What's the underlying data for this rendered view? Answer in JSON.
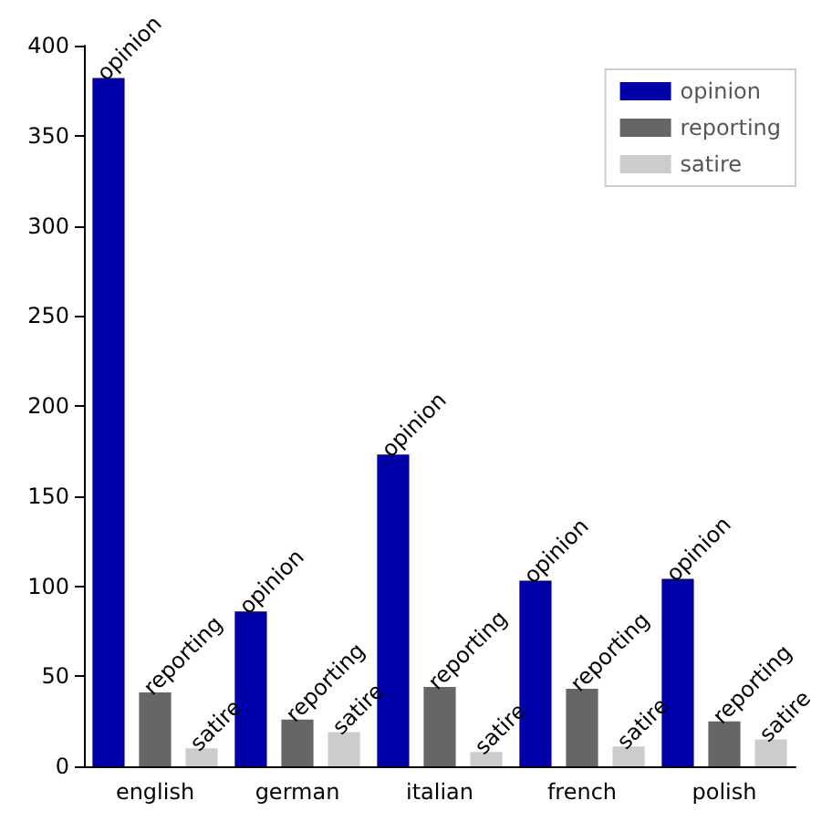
{
  "chart_data": {
    "type": "bar",
    "categories": [
      "english",
      "german",
      "italian",
      "french",
      "polish"
    ],
    "series": [
      {
        "name": "opinion",
        "color": "#0000aa",
        "values": [
          382,
          86,
          173,
          103,
          104
        ],
        "value_labels": [
          "opinion",
          "opinion",
          "opinion",
          "opinion",
          "opinion"
        ]
      },
      {
        "name": "reporting",
        "color": "#666666",
        "values": [
          41,
          26,
          44,
          43,
          25
        ],
        "value_labels": [
          "reporting",
          "reporting",
          "reporting",
          "reporting",
          "reporting"
        ]
      },
      {
        "name": "satire",
        "color": "#cccccc",
        "values": [
          10,
          19,
          8,
          11,
          15
        ],
        "value_labels": [
          "satire",
          "satire",
          "satire",
          "satire",
          "satire"
        ]
      }
    ],
    "ylim": [
      0,
      400
    ],
    "yticks": [
      0,
      50,
      100,
      150,
      200,
      250,
      300,
      350,
      400
    ],
    "grid": false,
    "legend": "top right"
  }
}
